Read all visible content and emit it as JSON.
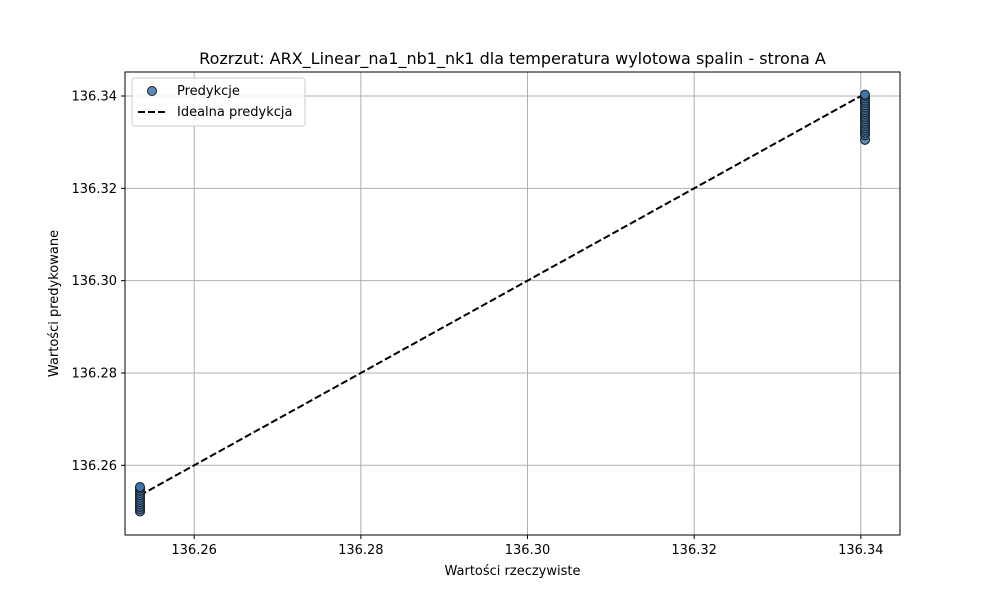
{
  "chart_data": {
    "type": "scatter",
    "title": "Rozrzut: ARX_Linear_na1_nb1_nk1 dla temperatura wylotowa spalin - strona A",
    "xlabel": "Wartości rzeczywiste",
    "ylabel": "Wartości predykowane",
    "xlim": [
      136.2517,
      136.3447
    ],
    "ylim": [
      136.2449,
      136.3452
    ],
    "xticks": [
      136.26,
      136.28,
      136.3,
      136.32,
      136.34
    ],
    "xtick_labels": [
      "136.26",
      "136.28",
      "136.30",
      "136.32",
      "136.34"
    ],
    "yticks": [
      136.26,
      136.28,
      136.3,
      136.32,
      136.34
    ],
    "ytick_labels": [
      "136.26",
      "136.28",
      "136.30",
      "136.32",
      "136.34"
    ],
    "grid": true,
    "legend_position": "top-left",
    "series": [
      {
        "name": "Predykcje",
        "kind": "scatter",
        "color": "#3b75af",
        "edge_color": "#1a1a1a",
        "points": [
          [
            136.2535,
            136.25
          ],
          [
            136.2535,
            136.2505
          ],
          [
            136.2535,
            136.251
          ],
          [
            136.2535,
            136.2515
          ],
          [
            136.2535,
            136.252
          ],
          [
            136.2535,
            136.2525
          ],
          [
            136.2535,
            136.253
          ],
          [
            136.2535,
            136.2535
          ],
          [
            136.2535,
            136.254
          ],
          [
            136.2535,
            136.2545
          ],
          [
            136.2535,
            136.255
          ],
          [
            136.2535,
            136.2553
          ],
          [
            136.3405,
            136.3305
          ],
          [
            136.3405,
            136.3315
          ],
          [
            136.3405,
            136.332
          ],
          [
            136.3405,
            136.3325
          ],
          [
            136.3405,
            136.333
          ],
          [
            136.3405,
            136.3335
          ],
          [
            136.3405,
            136.334
          ],
          [
            136.3405,
            136.3345
          ],
          [
            136.3405,
            136.335
          ],
          [
            136.3405,
            136.3355
          ],
          [
            136.3405,
            136.336
          ],
          [
            136.3405,
            136.3365
          ],
          [
            136.3405,
            136.337
          ],
          [
            136.3405,
            136.3375
          ],
          [
            136.3405,
            136.338
          ],
          [
            136.3405,
            136.3385
          ],
          [
            136.3405,
            136.339
          ],
          [
            136.3405,
            136.3395
          ],
          [
            136.3405,
            136.34
          ],
          [
            136.3405,
            136.3403
          ]
        ]
      },
      {
        "name": "Idealna predykcja",
        "kind": "line",
        "style": "dashed",
        "color": "#000000",
        "points": [
          [
            136.2535,
            136.2535
          ],
          [
            136.3405,
            136.3405
          ]
        ]
      }
    ]
  }
}
